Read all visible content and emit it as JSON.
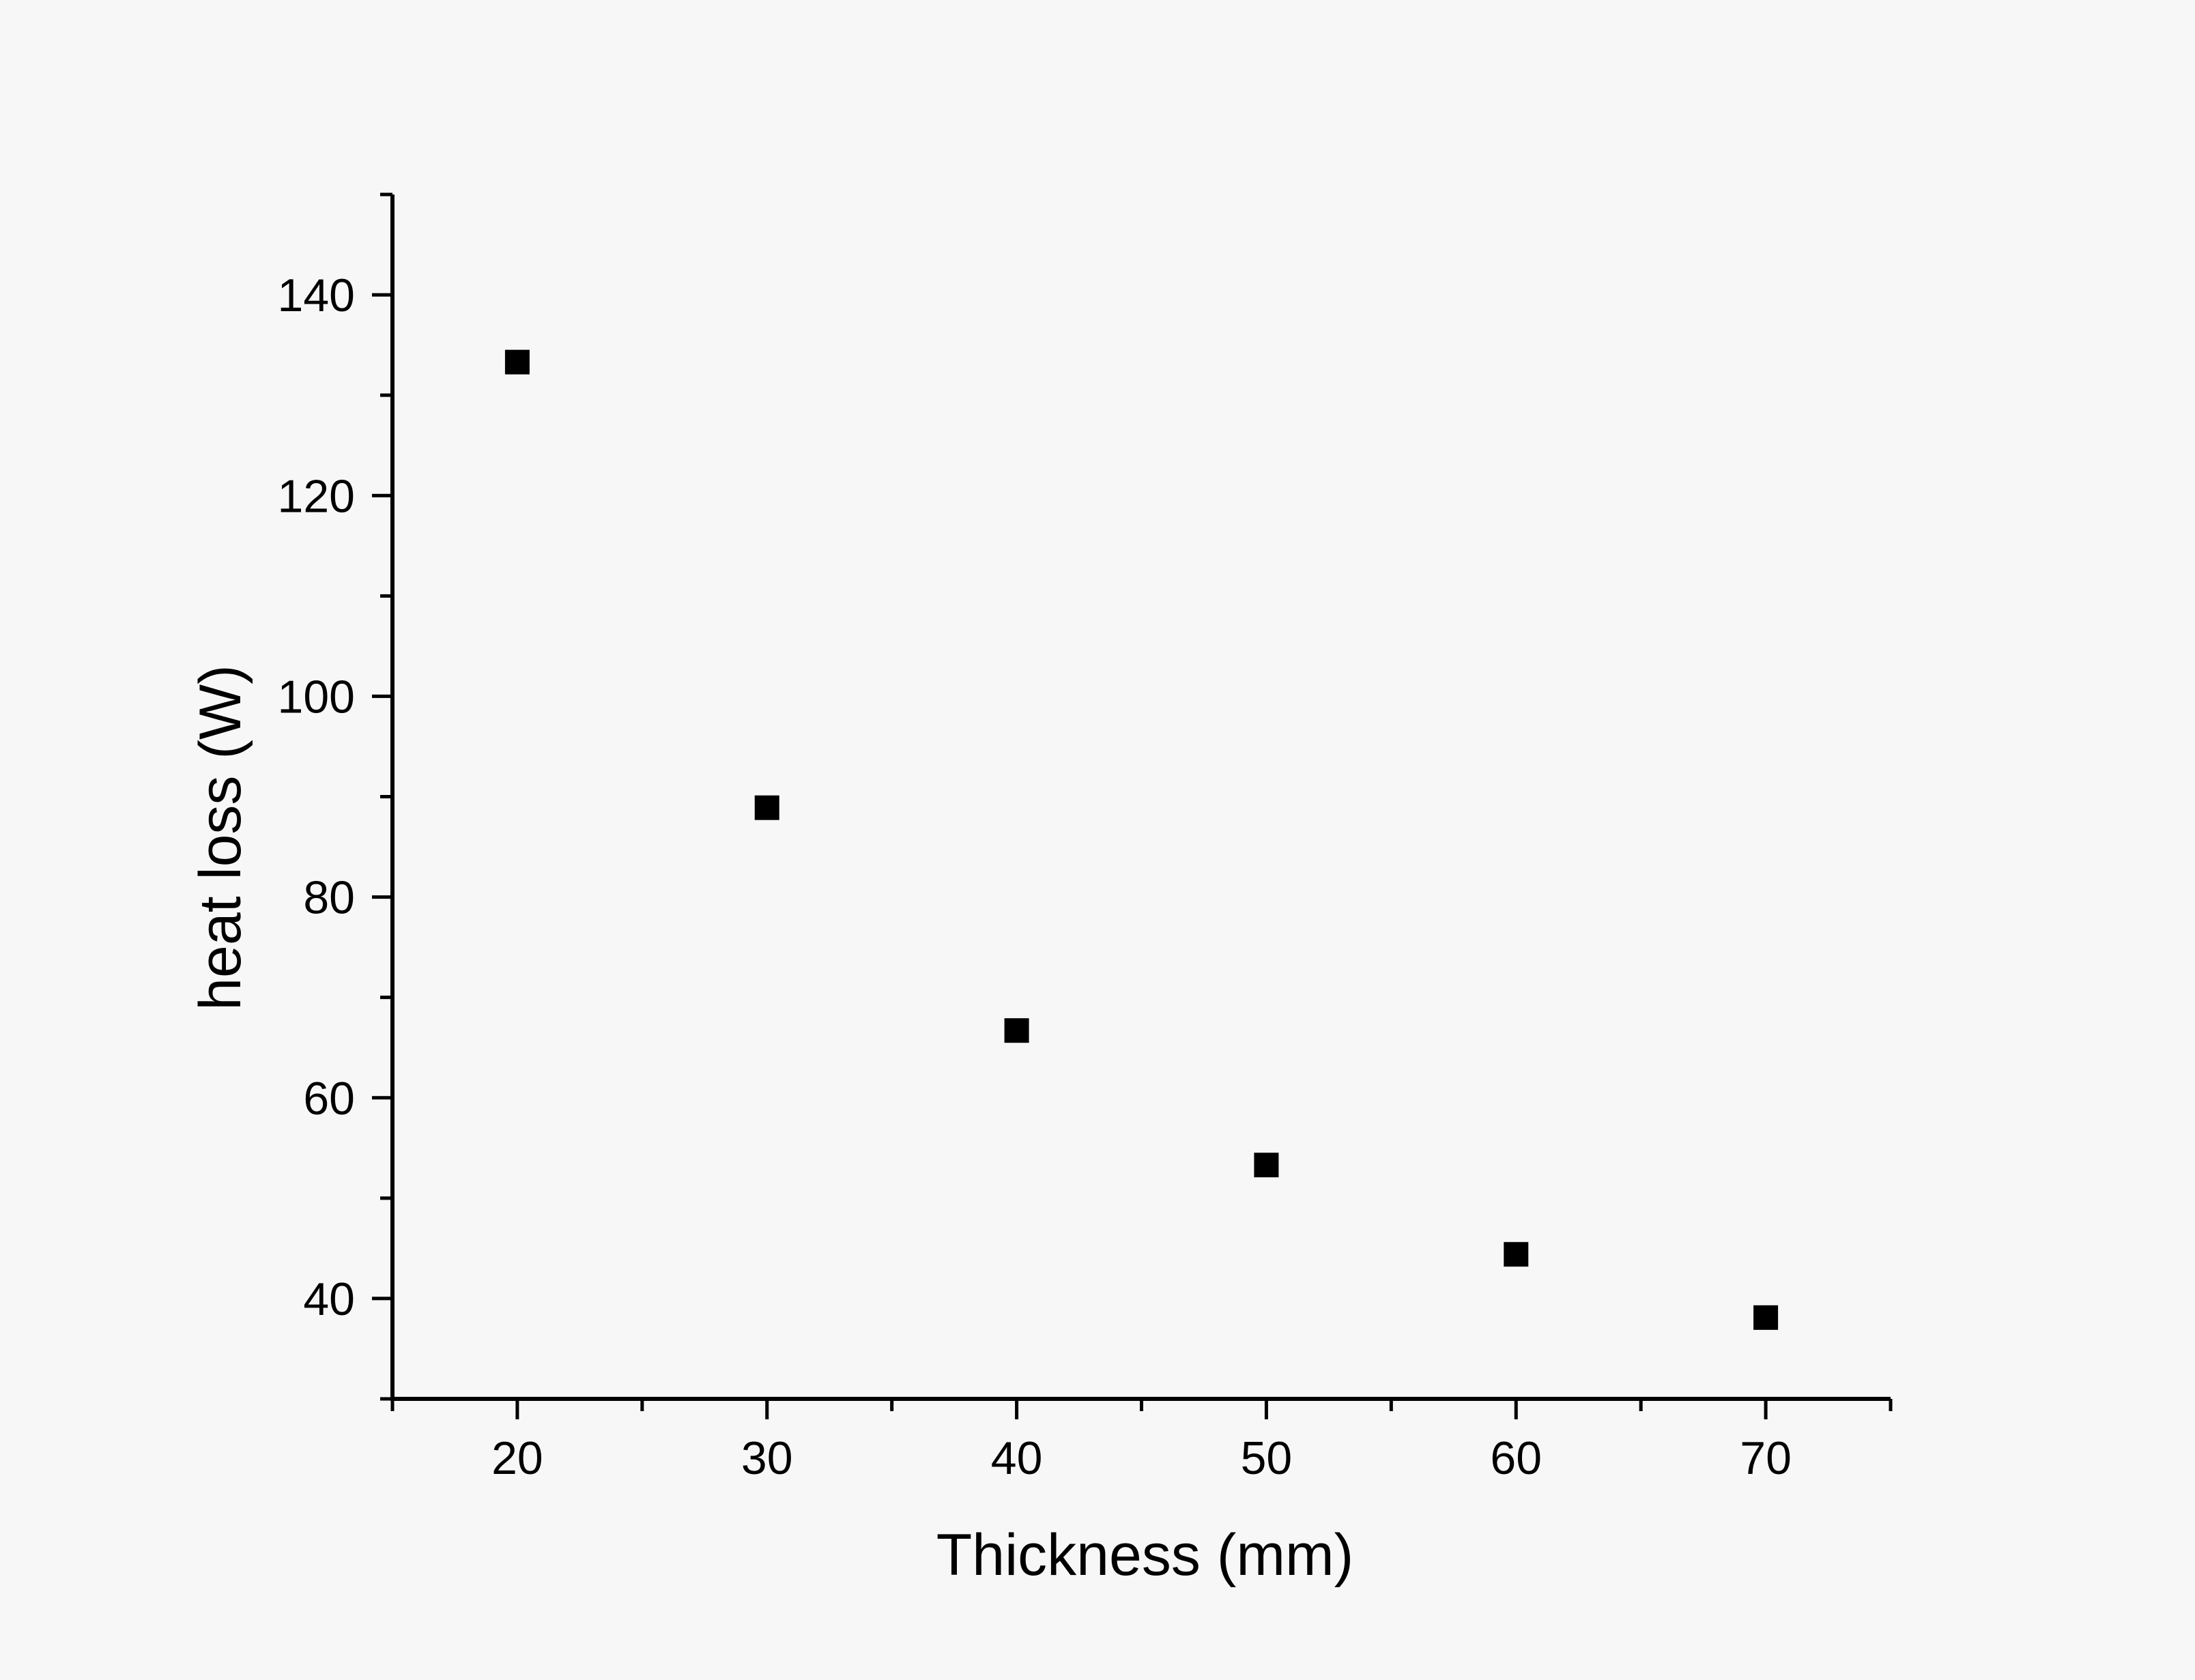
{
  "chart_data": {
    "type": "scatter",
    "title": "",
    "xlabel": "Thickness (mm)",
    "ylabel": "heat loss (W)",
    "xlim": [
      15,
      75
    ],
    "ylim": [
      30,
      150
    ],
    "xticks": [
      20,
      30,
      40,
      50,
      60,
      70
    ],
    "yticks": [
      40,
      60,
      80,
      100,
      120,
      140
    ],
    "grid": false,
    "legend": "none",
    "marker": "square",
    "marker_color": "#000000",
    "series": [
      {
        "x": [
          20,
          30,
          40,
          50,
          60,
          70
        ],
        "y": [
          133.3,
          88.9,
          66.7,
          53.3,
          44.4,
          38.1
        ]
      }
    ]
  }
}
